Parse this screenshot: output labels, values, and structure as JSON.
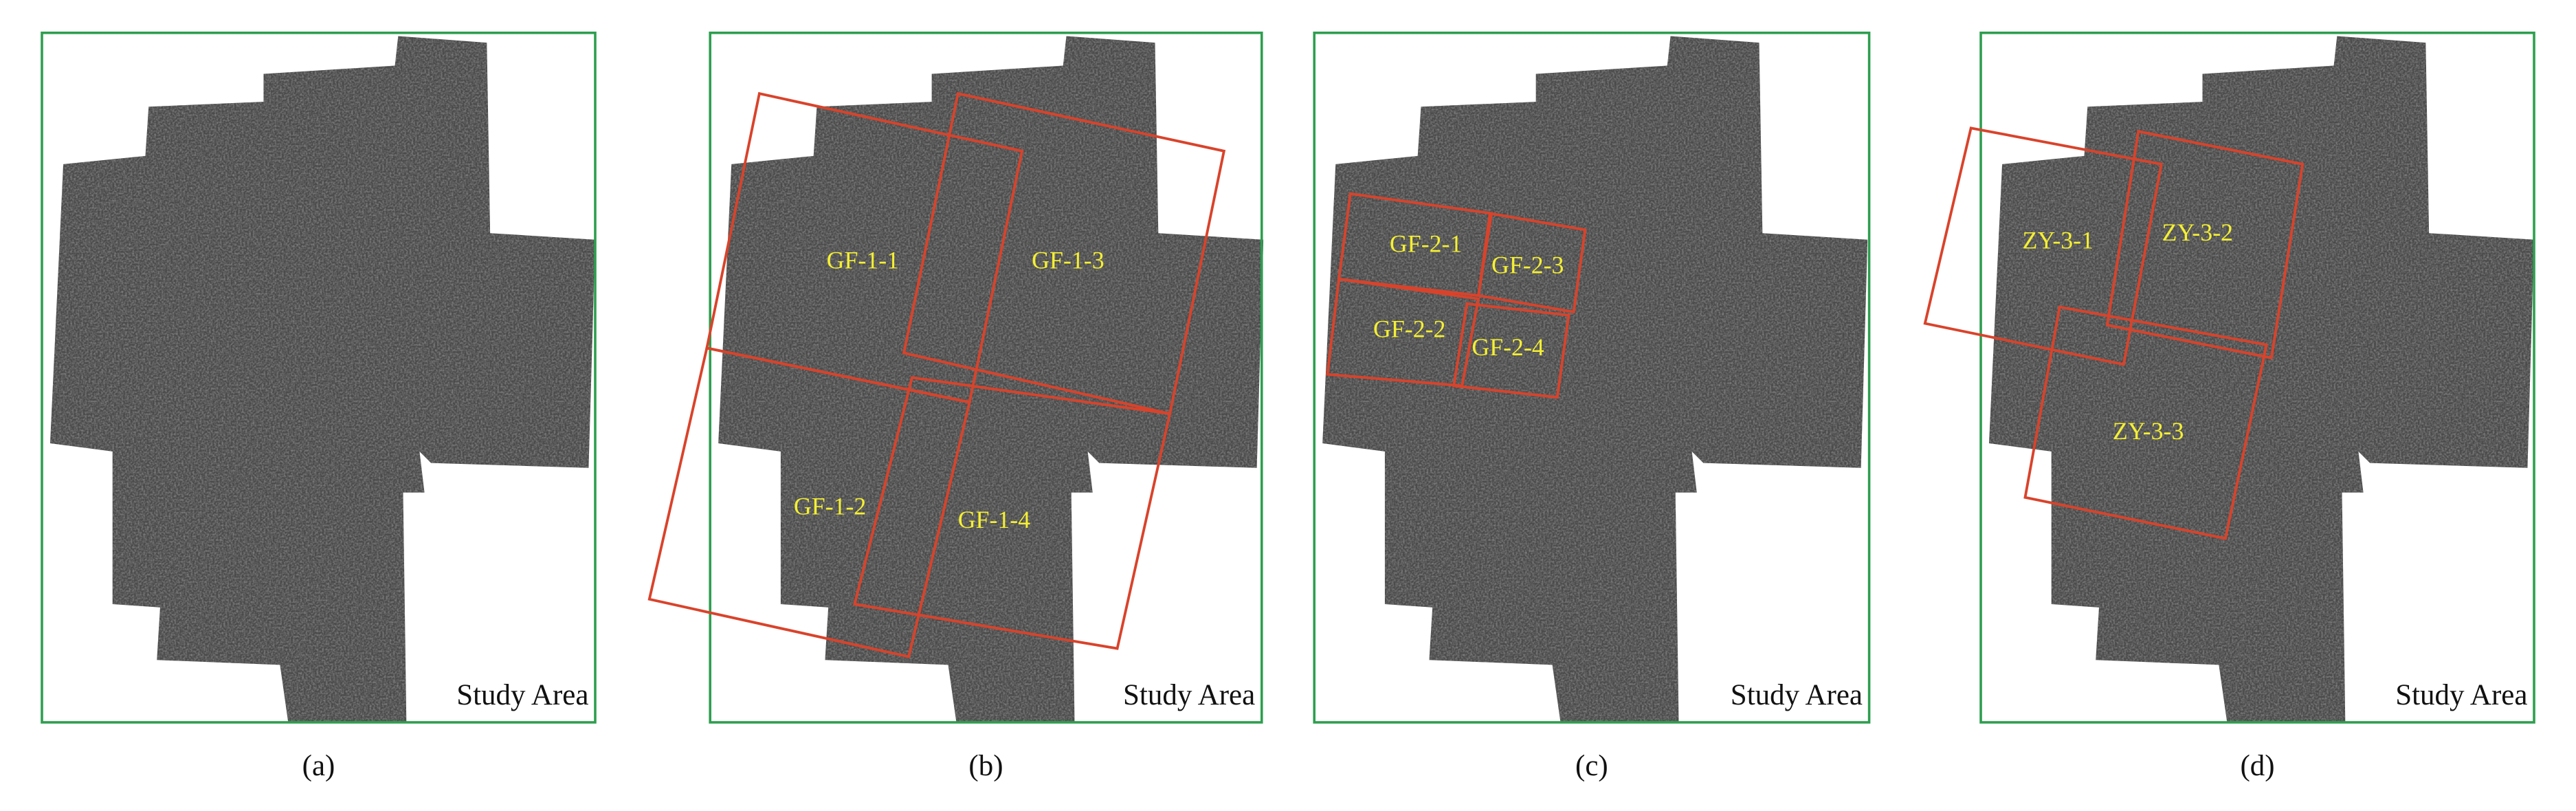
{
  "panels": [
    {
      "label": "(a)",
      "caption": "Study Area",
      "scenes": []
    },
    {
      "label": "(b)",
      "caption": "Study Area",
      "scenes": [
        "GF-1-1",
        "GF-1-3",
        "GF-1-2",
        "GF-1-4"
      ]
    },
    {
      "label": "(c)",
      "caption": "Study Area",
      "scenes": [
        "GF-2-1",
        "GF-2-3",
        "GF-2-2",
        "GF-2-4"
      ]
    },
    {
      "label": "(d)",
      "caption": "Study Area",
      "scenes": [
        "ZY-3-1",
        "ZY-3-2",
        "ZY-3-3"
      ]
    }
  ]
}
